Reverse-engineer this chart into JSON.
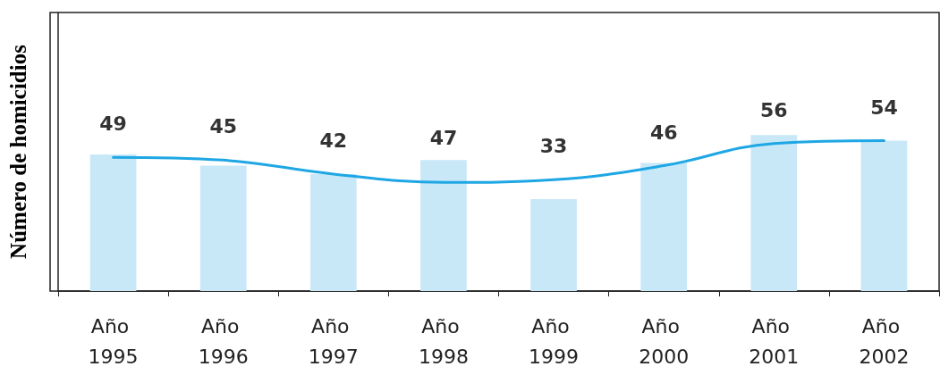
{
  "chart_data": {
    "type": "bar",
    "ylabel": "Número de homicidios",
    "categories": [
      "Año 1995",
      "Año 1996",
      "Año 1997",
      "Año 1998",
      "Año 1999",
      "Año 2000",
      "Año 2001",
      "Año 2002"
    ],
    "series": [
      {
        "color": "#c8e8f8",
        "values": [
          49,
          45,
          42,
          47,
          33,
          46,
          56,
          54
        ],
        "data_labels": true
      },
      {
        "type": "line",
        "color": "#1ea7e4",
        "values": [
          48,
          47,
          42,
          39,
          40,
          45,
          53,
          54
        ],
        "marker": "none"
      }
    ],
    "ylim": [
      0,
      100
    ],
    "tick_labels": "x",
    "grid": false
  }
}
